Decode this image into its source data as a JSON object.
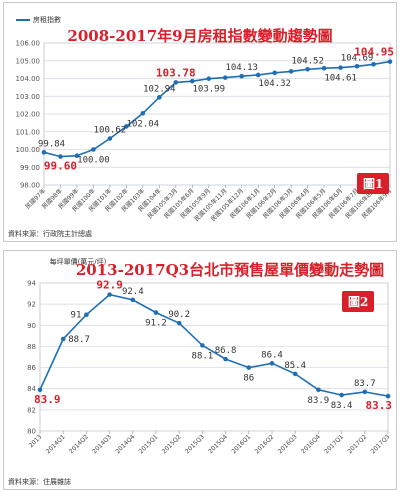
{
  "colors": {
    "accent": "#d8202a",
    "line": "#1f6fb5",
    "grid": "#cfd8e0"
  },
  "chart_data": [
    {
      "type": "line",
      "title": "2008-2017年9月房租指數變動趨勢圖",
      "legend": "房租指數",
      "badge": "圖1",
      "source": "資料來源：行政院主計總處",
      "ylim": [
        98.0,
        106.0
      ],
      "yticks": [
        "98.00",
        "99.00",
        "100.00",
        "101.00",
        "102.00",
        "103.00",
        "104.00",
        "105.00",
        "106.00"
      ],
      "categories": [
        "民國97年",
        "民國98年",
        "民國99年",
        "民國100年",
        "民國101年",
        "民國102年",
        "民國103年",
        "民國104年",
        "民國105年3月",
        "民國105年6月",
        "民國105年9月",
        "民國105年11月",
        "民國105年12月",
        "民國106年1月",
        "民國106年2月",
        "民國106年3月",
        "民國106年4月",
        "民國106年5月",
        "民國106年6月",
        "民國106年7月",
        "民國106年8月",
        "民國106年9月"
      ],
      "series": [
        {
          "values": [
            99.84,
            99.6,
            99.65,
            100.0,
            100.62,
            101.3,
            102.04,
            102.94,
            103.78,
            103.85,
            103.99,
            104.05,
            104.13,
            104.2,
            104.32,
            104.4,
            104.52,
            104.58,
            104.61,
            104.69,
            104.8,
            104.95
          ]
        }
      ],
      "labels": [
        {
          "i": 0,
          "text": "99.84",
          "pos": "above"
        },
        {
          "i": 1,
          "text": "99.60",
          "pos": "below",
          "hi": true
        },
        {
          "i": 3,
          "text": "100.00",
          "pos": "below"
        },
        {
          "i": 4,
          "text": "100.62",
          "pos": "above"
        },
        {
          "i": 6,
          "text": "102.04",
          "pos": "below"
        },
        {
          "i": 7,
          "text": "102.94",
          "pos": "above"
        },
        {
          "i": 8,
          "text": "103.78",
          "pos": "above",
          "hi": true
        },
        {
          "i": 10,
          "text": "103.99",
          "pos": "below"
        },
        {
          "i": 12,
          "text": "104.13",
          "pos": "above"
        },
        {
          "i": 14,
          "text": "104.32",
          "pos": "below"
        },
        {
          "i": 16,
          "text": "104.52",
          "pos": "above"
        },
        {
          "i": 18,
          "text": "104.61",
          "pos": "below"
        },
        {
          "i": 19,
          "text": "104.69",
          "pos": "above"
        },
        {
          "i": 21,
          "text": "104.95",
          "pos": "above",
          "hi": true
        }
      ]
    },
    {
      "type": "line",
      "title": "2013-2017Q3台北市預售屋單價變動走勢圖",
      "legend": "每坪單價(萬元/坪)",
      "badge": "圖2",
      "source": "資料來源：住展雜誌",
      "ylim": [
        80,
        94
      ],
      "yticks": [
        "80",
        "82",
        "84",
        "86",
        "88",
        "90",
        "92",
        "94"
      ],
      "categories": [
        "2013",
        "2014Q1",
        "2014Q2",
        "2014Q3",
        "2014Q4",
        "2015Q1",
        "2015Q2",
        "2015Q3",
        "2015Q4",
        "2016Q1",
        "2016Q2",
        "2016Q3",
        "2016Q4",
        "2017Q1",
        "2017Q2",
        "2017Q3"
      ],
      "series": [
        {
          "values": [
            83.9,
            88.7,
            91.0,
            92.9,
            92.4,
            91.2,
            90.2,
            88.1,
            86.8,
            86.0,
            86.4,
            85.4,
            83.9,
            83.4,
            83.7,
            83.3
          ]
        }
      ],
      "labels": [
        {
          "i": 0,
          "text": "83.9",
          "pos": "below",
          "hi": true
        },
        {
          "i": 1,
          "text": "88.7",
          "pos": "right"
        },
        {
          "i": 2,
          "text": "91",
          "pos": "left"
        },
        {
          "i": 3,
          "text": "92.9",
          "pos": "above",
          "hi": true
        },
        {
          "i": 4,
          "text": "92.4",
          "pos": "above"
        },
        {
          "i": 5,
          "text": "91.2",
          "pos": "below"
        },
        {
          "i": 6,
          "text": "90.2",
          "pos": "above"
        },
        {
          "i": 7,
          "text": "88.1",
          "pos": "below"
        },
        {
          "i": 8,
          "text": "86.8",
          "pos": "above"
        },
        {
          "i": 9,
          "text": "86",
          "pos": "below"
        },
        {
          "i": 10,
          "text": "86.4",
          "pos": "above"
        },
        {
          "i": 11,
          "text": "85.4",
          "pos": "above"
        },
        {
          "i": 12,
          "text": "83.9",
          "pos": "below"
        },
        {
          "i": 13,
          "text": "83.4",
          "pos": "below"
        },
        {
          "i": 14,
          "text": "83.7",
          "pos": "above"
        },
        {
          "i": 15,
          "text": "83.3",
          "pos": "below",
          "hi": true
        }
      ]
    }
  ]
}
